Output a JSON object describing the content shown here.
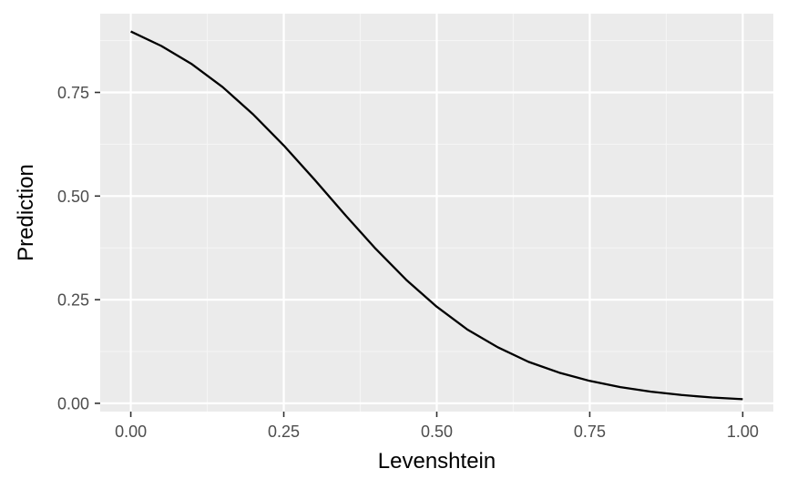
{
  "colors": {
    "panel_background": "#EBEBEB",
    "grid_major": "#FFFFFF",
    "grid_minor": "#F5F5F5",
    "line": "#000000",
    "tick_text": "#4D4D4D",
    "axis_title_text": "#000000"
  },
  "chart_data": {
    "type": "line",
    "title": "",
    "xlabel": "Levenshtein",
    "ylabel": "Prediction",
    "xlim": [
      -0.05,
      1.05
    ],
    "ylim": [
      -0.02,
      0.94
    ],
    "x_ticks": [
      0,
      0.25,
      0.5,
      0.75,
      1
    ],
    "x_tick_labels": [
      "0.00",
      "0.25",
      "0.50",
      "0.75",
      "1.00"
    ],
    "y_ticks": [
      0,
      0.25,
      0.5,
      0.75
    ],
    "y_tick_labels": [
      "0.00",
      "0.25",
      "0.50",
      "0.75"
    ],
    "grid": true,
    "legend": "none",
    "series": [
      {
        "x": [
          0,
          0.05,
          0.1,
          0.15,
          0.2,
          0.25,
          0.3,
          0.35,
          0.4,
          0.45,
          0.5,
          0.55,
          0.6,
          0.65,
          0.7,
          0.75,
          0.8,
          0.85,
          0.9,
          0.95,
          1
        ],
        "y": [
          0.897,
          0.862,
          0.818,
          0.763,
          0.697,
          0.622,
          0.54,
          0.455,
          0.373,
          0.298,
          0.233,
          0.178,
          0.135,
          0.1,
          0.074,
          0.054,
          0.039,
          0.028,
          0.02,
          0.014,
          0.01
        ]
      }
    ]
  }
}
